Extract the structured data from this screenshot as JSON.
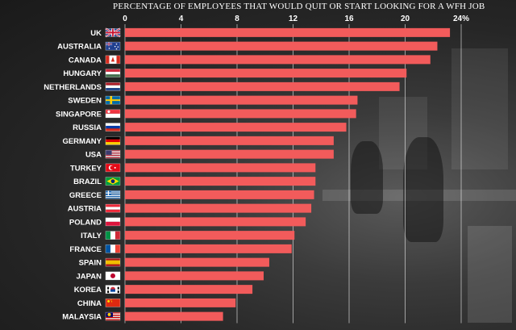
{
  "chart_data": {
    "type": "bar",
    "orientation": "horizontal",
    "title": "PERCENTAGE  OF EMPLOYEES THAT WOULD QUIT OR START LOOKING FOR A WFH JOB",
    "xlim": [
      0,
      24
    ],
    "xticks": [
      0,
      4,
      8,
      12,
      16,
      20,
      24
    ],
    "xtick_labels": [
      "0",
      "4",
      "8",
      "12",
      "16",
      "20",
      "24%"
    ],
    "grid": true,
    "bar_color": "#f25b5b",
    "categories": [
      "UK",
      "AUSTRALIA",
      "CANADA",
      "HUNGARY",
      "NETHERLANDS",
      "SWEDEN",
      "SINGAPORE",
      "RUSSIA",
      "GERMANY",
      "USA",
      "TURKEY",
      "BRAZIL",
      "GREECE",
      "AUSTRIA",
      "POLAND",
      "ITALY",
      "FRANCE",
      "SPAIN",
      "JAPAN",
      "KOREA",
      "CHINA",
      "MALAYSIA"
    ],
    "values": [
      23.2,
      22.3,
      21.8,
      20.1,
      19.6,
      16.6,
      16.5,
      15.8,
      14.9,
      14.9,
      13.6,
      13.6,
      13.5,
      13.3,
      12.9,
      12.1,
      11.9,
      10.3,
      9.9,
      9.1,
      7.9,
      7.0
    ],
    "flags": [
      "uk-flag",
      "australia-flag",
      "canada-flag",
      "hungary-flag",
      "netherlands-flag",
      "sweden-flag",
      "singapore-flag",
      "russia-flag",
      "germany-flag",
      "usa-flag",
      "turkey-flag",
      "brazil-flag",
      "greece-flag",
      "austria-flag",
      "poland-flag",
      "italy-flag",
      "france-flag",
      "spain-flag",
      "japan-flag",
      "korea-flag",
      "china-flag",
      "malaysia-flag"
    ]
  }
}
